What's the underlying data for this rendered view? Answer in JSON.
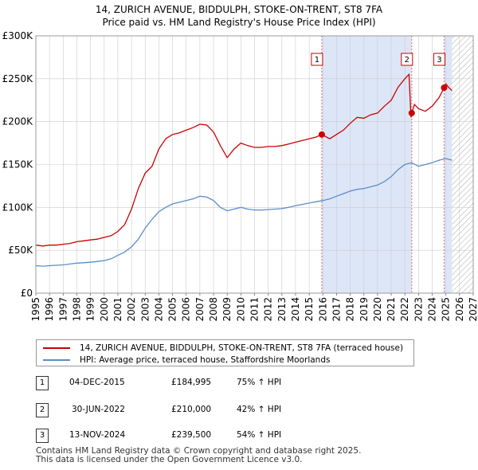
{
  "title": {
    "line1": "14, ZURICH AVENUE, BIDDULPH, STOKE-ON-TRENT, ST8 7FA",
    "line2": "Price paid vs. HM Land Registry's House Price Index (HPI)"
  },
  "colors": {
    "price_line": "#cc0000",
    "hpi_line": "#5b8ccc",
    "sale_band": "#dde6f7",
    "grid": "#cccccc",
    "hatch": "#aaaaaa",
    "marker_line": "#e07070"
  },
  "legend": {
    "price_label": "14, ZURICH AVENUE, BIDDULPH, STOKE-ON-TRENT, ST8 7FA (terraced house)",
    "hpi_label": "HPI: Average price, terraced house, Staffordshire Moorlands"
  },
  "sales": [
    {
      "num": "1",
      "date": "04-DEC-2015",
      "price": "£184,995",
      "delta": "75% ↑ HPI"
    },
    {
      "num": "2",
      "date": "30-JUN-2022",
      "price": "£210,000",
      "delta": "42% ↑ HPI"
    },
    {
      "num": "3",
      "date": "13-NOV-2024",
      "price": "£239,500",
      "delta": "54% ↑ HPI"
    }
  ],
  "footer": {
    "line1": "Contains HM Land Registry data © Crown copyright and database right 2025.",
    "line2": "This data is licensed under the Open Government Licence v3.0."
  },
  "chart_data": {
    "type": "line",
    "xlim": [
      1995,
      2027
    ],
    "ylim": [
      0,
      300000
    ],
    "x_ticks": [
      1995,
      1996,
      1997,
      1998,
      1999,
      2000,
      2001,
      2002,
      2003,
      2004,
      2005,
      2006,
      2007,
      2008,
      2009,
      2010,
      2011,
      2012,
      2013,
      2014,
      2015,
      2016,
      2017,
      2018,
      2019,
      2020,
      2021,
      2022,
      2023,
      2024,
      2025,
      2026,
      2027
    ],
    "y_ticks": [
      {
        "value": 0,
        "label": "£0"
      },
      {
        "value": 50000,
        "label": "£50K"
      },
      {
        "value": 100000,
        "label": "£100K"
      },
      {
        "value": 150000,
        "label": "£150K"
      },
      {
        "value": 200000,
        "label": "£200K"
      },
      {
        "value": 250000,
        "label": "£250K"
      },
      {
        "value": 300000,
        "label": "£300K"
      }
    ],
    "data_end_year": 2025.45,
    "shaded_bands": [
      [
        2015.92,
        2022.5
      ],
      [
        2024.87,
        2025.45
      ]
    ],
    "sale_markers": [
      {
        "label": "1",
        "x": 2015.92,
        "y": 184995
      },
      {
        "label": "2",
        "x": 2022.5,
        "y": 210000
      },
      {
        "label": "3",
        "x": 2024.87,
        "y": 239500
      }
    ],
    "series": [
      {
        "name": "14, ZURICH AVENUE, BIDDULPH, STOKE-ON-TRENT, ST8 7FA (terraced house)",
        "x": [
          1995,
          1995.5,
          1996,
          1996.5,
          1997,
          1997.5,
          1998,
          1998.5,
          1999,
          1999.5,
          2000,
          2000.5,
          2001,
          2001.5,
          2002,
          2002.5,
          2003,
          2003.5,
          2004,
          2004.5,
          2005,
          2005.5,
          2006,
          2006.5,
          2007,
          2007.5,
          2008,
          2008.5,
          2009,
          2009.5,
          2010,
          2010.5,
          2011,
          2011.5,
          2012,
          2012.5,
          2013,
          2013.5,
          2014,
          2014.5,
          2015,
          2015.5,
          2015.92,
          2016.5,
          2017,
          2017.5,
          2018,
          2018.5,
          2019,
          2019.5,
          2020,
          2020.5,
          2021,
          2021.5,
          2022,
          2022.3,
          2022.45,
          2022.5,
          2022.7,
          2023,
          2023.5,
          2024,
          2024.5,
          2024.87,
          2025,
          2025.2,
          2025.45
        ],
        "y": [
          56000,
          55000,
          56000,
          56000,
          57000,
          58000,
          60000,
          61000,
          62000,
          63000,
          65000,
          67000,
          72000,
          80000,
          98000,
          122000,
          140000,
          148000,
          168000,
          180000,
          185000,
          187000,
          190000,
          193000,
          197000,
          196000,
          188000,
          172000,
          158000,
          168000,
          175000,
          172000,
          170000,
          170000,
          171000,
          171000,
          172000,
          174000,
          176000,
          178000,
          180000,
          182000,
          184995,
          180000,
          185000,
          190000,
          198000,
          205000,
          204000,
          208000,
          210000,
          218000,
          225000,
          240000,
          250000,
          255000,
          205000,
          210000,
          220000,
          215000,
          212000,
          218000,
          228000,
          239500,
          244000,
          240000,
          236000
        ]
      },
      {
        "name": "HPI: Average price, terraced house, Staffordshire Moorlands",
        "x": [
          1995,
          1995.5,
          1996,
          1996.5,
          1997,
          1997.5,
          1998,
          1998.5,
          1999,
          1999.5,
          2000,
          2000.5,
          2001,
          2001.5,
          2002,
          2002.5,
          2003,
          2003.5,
          2004,
          2004.5,
          2005,
          2005.5,
          2006,
          2006.5,
          2007,
          2007.5,
          2008,
          2008.5,
          2009,
          2009.5,
          2010,
          2010.5,
          2011,
          2011.5,
          2012,
          2012.5,
          2013,
          2013.5,
          2014,
          2014.5,
          2015,
          2015.5,
          2016,
          2016.5,
          2017,
          2017.5,
          2018,
          2018.5,
          2019,
          2019.5,
          2020,
          2020.5,
          2021,
          2021.5,
          2022,
          2022.5,
          2023,
          2023.5,
          2024,
          2024.5,
          2025,
          2025.45
        ],
        "y": [
          32000,
          31500,
          32000,
          32500,
          33000,
          34000,
          35000,
          35500,
          36000,
          37000,
          38000,
          40000,
          44000,
          48000,
          54000,
          63000,
          76000,
          86000,
          95000,
          100000,
          104000,
          106000,
          108000,
          110000,
          113000,
          112000,
          108000,
          100000,
          96000,
          98000,
          100000,
          98000,
          97000,
          97000,
          97500,
          98000,
          98500,
          100000,
          102000,
          103500,
          105000,
          106500,
          108000,
          110000,
          113000,
          116000,
          119000,
          121000,
          122000,
          124000,
          126000,
          130000,
          136000,
          144000,
          150000,
          152000,
          148000,
          150000,
          152000,
          155000,
          157000,
          155000
        ]
      }
    ]
  }
}
